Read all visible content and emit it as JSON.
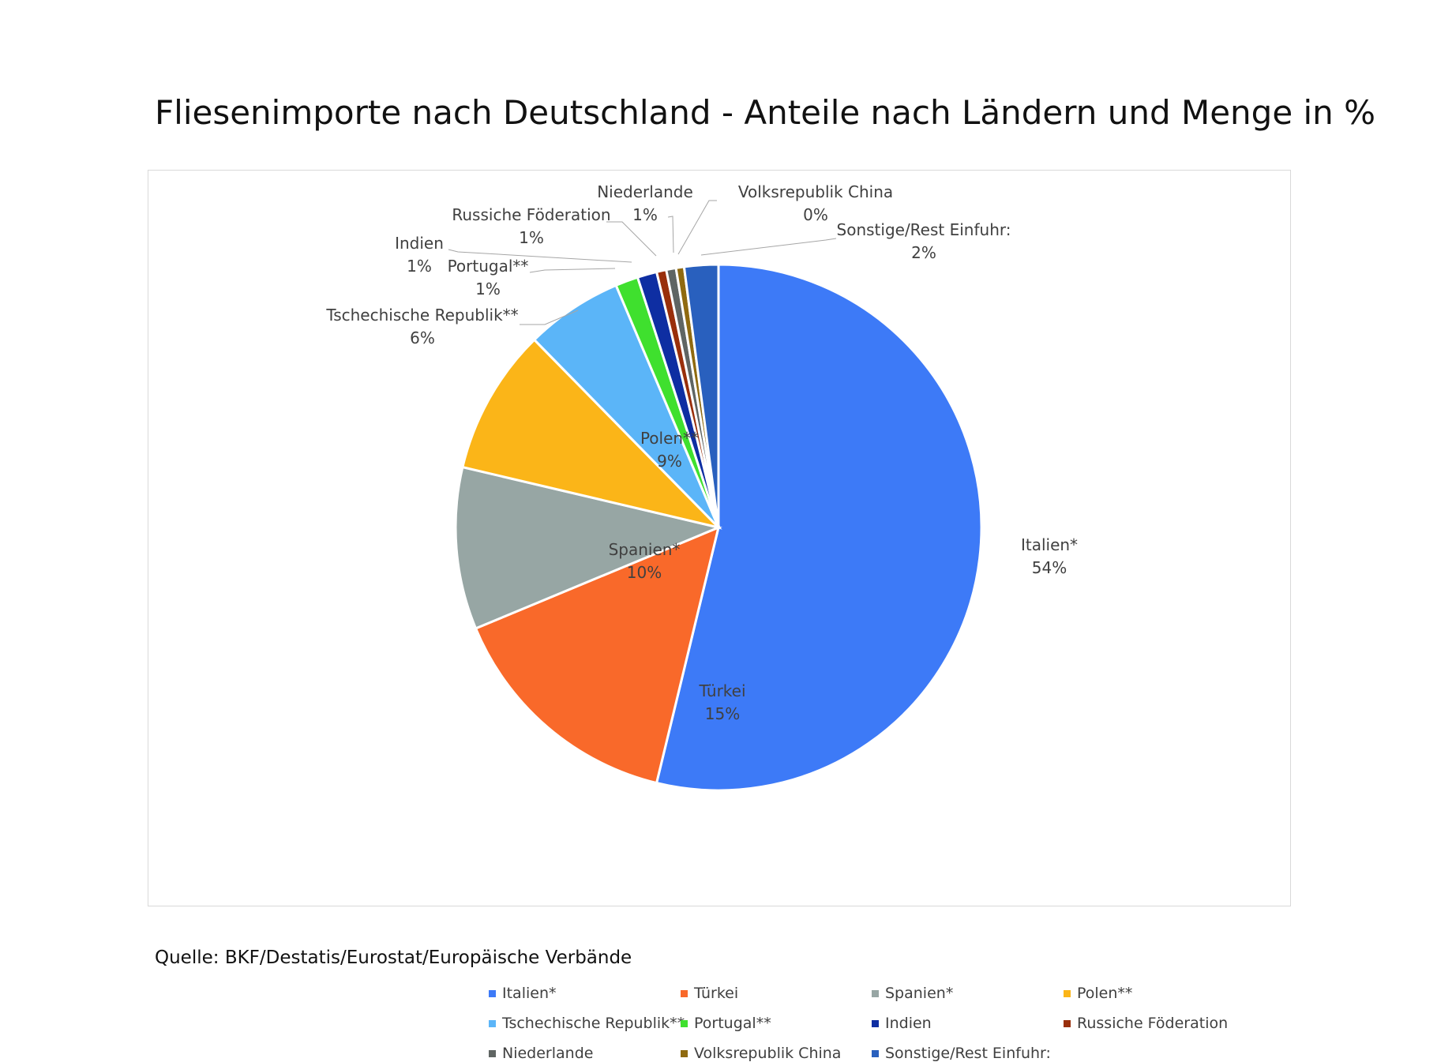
{
  "title": "Fliesenimporte nach Deutschland - Anteile nach Ländern und Menge in %",
  "source": "Quelle: BKF/Destatis/Eurostat/Europäische Verbände",
  "chart_data": {
    "type": "pie",
    "start_angle_deg": 0,
    "direction": "clockwise",
    "legend_position": "bottom",
    "slices": [
      {
        "name": "Italien*",
        "value": 54,
        "label": "54%",
        "color": "#3D7AF7"
      },
      {
        "name": "Türkei",
        "value": 15,
        "label": "15%",
        "color": "#F9692A"
      },
      {
        "name": "Spanien*",
        "value": 10,
        "label": "10%",
        "color": "#97A6A4"
      },
      {
        "name": "Polen**",
        "value": 9,
        "label": "9%",
        "color": "#FBB518"
      },
      {
        "name": "Tschechische Republik**",
        "value": 6,
        "label": "6%",
        "color": "#5BB5F8"
      },
      {
        "name": "Portugal**",
        "value": 1.4,
        "label": "1%",
        "color": "#3FE02E"
      },
      {
        "name": "Indien",
        "value": 1.2,
        "label": "1%",
        "color": "#0E2EA2"
      },
      {
        "name": "Russiche Föderation",
        "value": 0.6,
        "label": "1%",
        "color": "#992F0B"
      },
      {
        "name": "Niederlande",
        "value": 0.6,
        "label": "1%",
        "color": "#5F6563"
      },
      {
        "name": "Volksrepublik China",
        "value": 0.5,
        "label": "0%",
        "color": "#8F6A10"
      },
      {
        "name": "Sonstige/Rest Einfuhr:",
        "value": 2.1,
        "label": "2%",
        "color": "#2960BE"
      }
    ]
  }
}
